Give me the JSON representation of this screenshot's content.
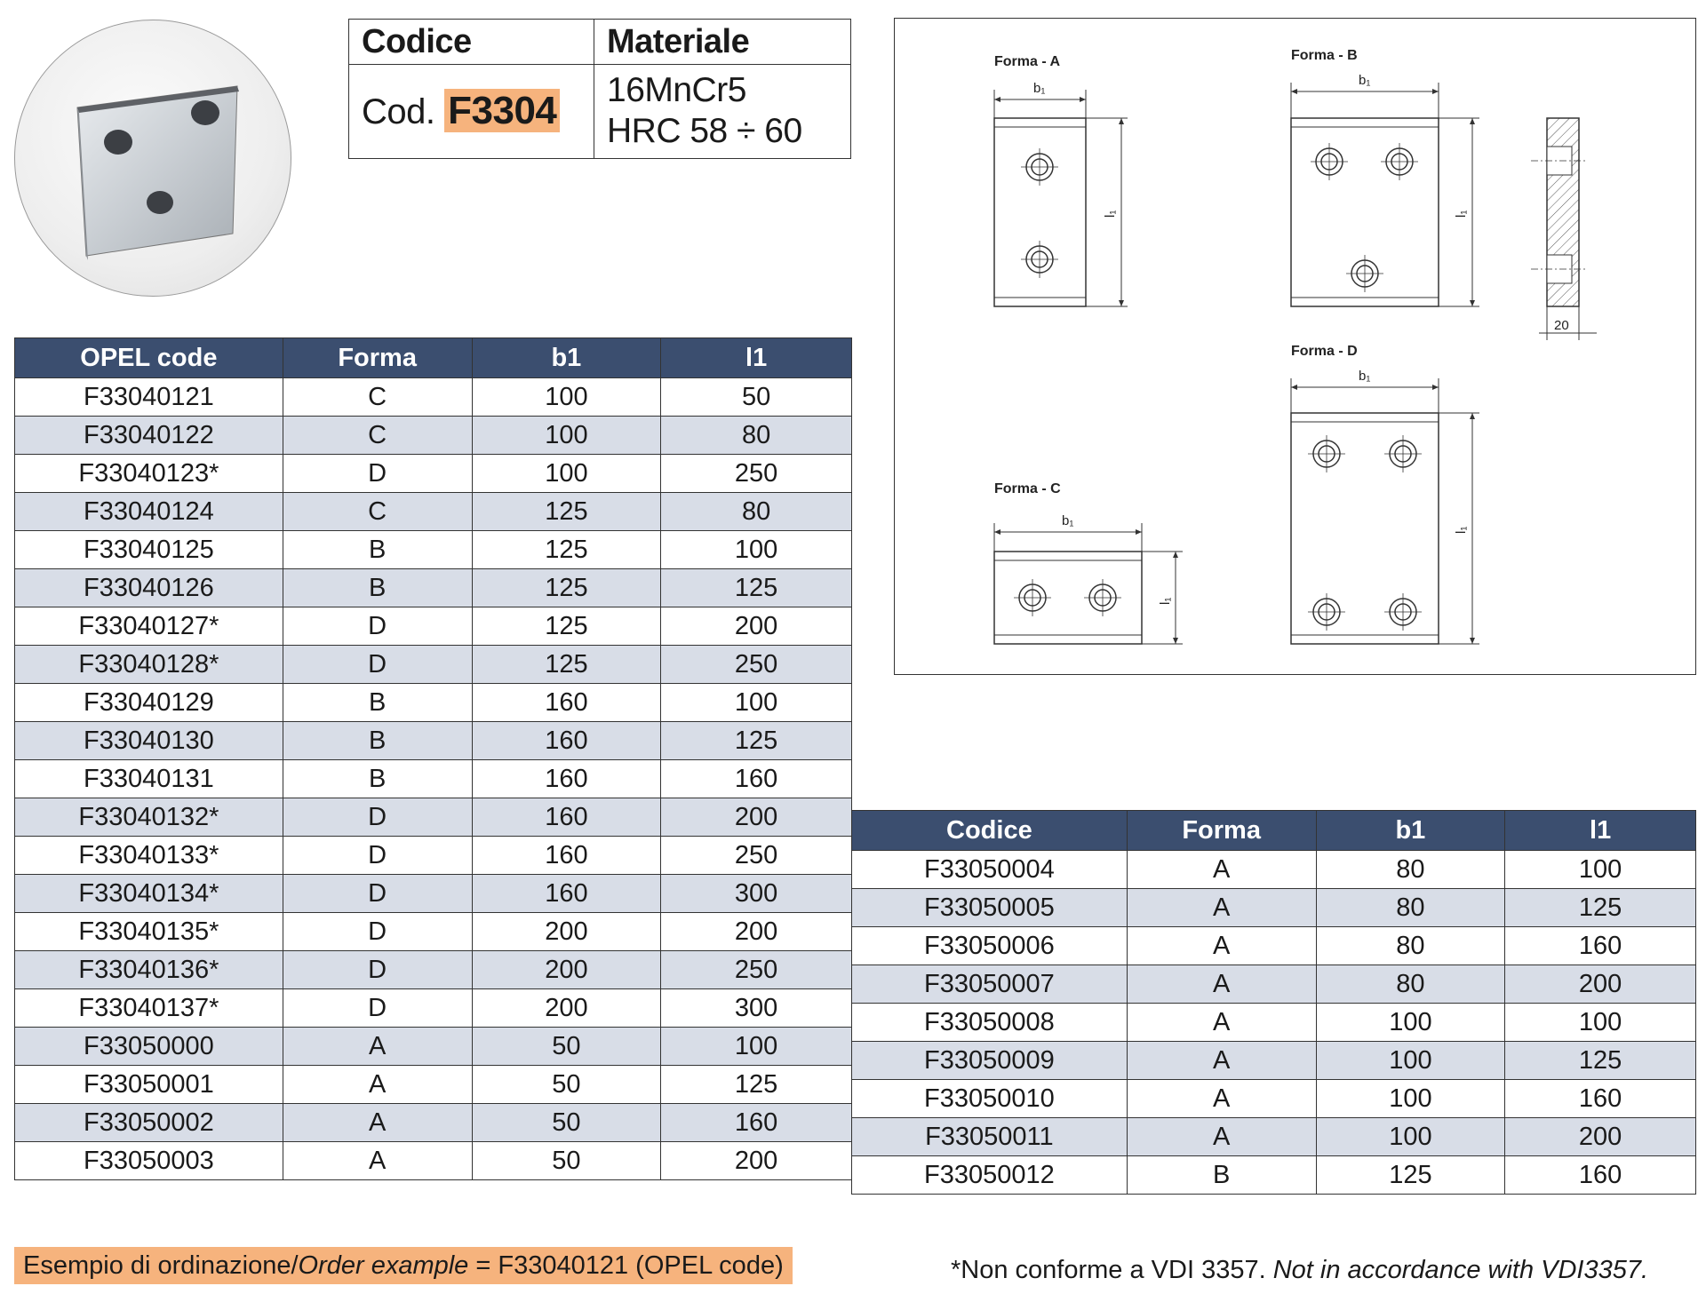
{
  "spec": {
    "codice_label": "Codice",
    "materiale_label": "Materiale",
    "cod_prefix": "Cod.",
    "cod_value": "F3304",
    "material_line1": "16MnCr5",
    "material_line2": "HRC 58 ÷ 60"
  },
  "drawing": {
    "forma_a": "Forma - A",
    "forma_b": "Forma - B",
    "forma_c": "Forma - C",
    "forma_d": "Forma - D",
    "b1": "b₁",
    "l1": "l₁",
    "thickness": "20"
  },
  "table_left": {
    "headers": [
      "OPEL code",
      "Forma",
      "b1",
      "l1"
    ],
    "rows": [
      [
        "F33040121",
        "C",
        "100",
        "50"
      ],
      [
        "F33040122",
        "C",
        "100",
        "80"
      ],
      [
        "F33040123*",
        "D",
        "100",
        "250"
      ],
      [
        "F33040124",
        "C",
        "125",
        "80"
      ],
      [
        "F33040125",
        "B",
        "125",
        "100"
      ],
      [
        "F33040126",
        "B",
        "125",
        "125"
      ],
      [
        "F33040127*",
        "D",
        "125",
        "200"
      ],
      [
        "F33040128*",
        "D",
        "125",
        "250"
      ],
      [
        "F33040129",
        "B",
        "160",
        "100"
      ],
      [
        "F33040130",
        "B",
        "160",
        "125"
      ],
      [
        "F33040131",
        "B",
        "160",
        "160"
      ],
      [
        "F33040132*",
        "D",
        "160",
        "200"
      ],
      [
        "F33040133*",
        "D",
        "160",
        "250"
      ],
      [
        "F33040134*",
        "D",
        "160",
        "300"
      ],
      [
        "F33040135*",
        "D",
        "200",
        "200"
      ],
      [
        "F33040136*",
        "D",
        "200",
        "250"
      ],
      [
        "F33040137*",
        "D",
        "200",
        "300"
      ],
      [
        "F33050000",
        "A",
        "50",
        "100"
      ],
      [
        "F33050001",
        "A",
        "50",
        "125"
      ],
      [
        "F33050002",
        "A",
        "50",
        "160"
      ],
      [
        "F33050003",
        "A",
        "50",
        "200"
      ]
    ]
  },
  "table_right": {
    "headers": [
      "Codice",
      "Forma",
      "b1",
      "l1"
    ],
    "rows": [
      [
        "F33050004",
        "A",
        "80",
        "100"
      ],
      [
        "F33050005",
        "A",
        "80",
        "125"
      ],
      [
        "F33050006",
        "A",
        "80",
        "160"
      ],
      [
        "F33050007",
        "A",
        "80",
        "200"
      ],
      [
        "F33050008",
        "A",
        "100",
        "100"
      ],
      [
        "F33050009",
        "A",
        "100",
        "125"
      ],
      [
        "F33050010",
        "A",
        "100",
        "160"
      ],
      [
        "F33050011",
        "A",
        "100",
        "200"
      ],
      [
        "F33050012",
        "B",
        "125",
        "160"
      ]
    ]
  },
  "footer": {
    "order_it": "Esempio di ordinazione/",
    "order_en": "Order example",
    "order_value": " = F33040121 (OPEL code)",
    "note_it": "*Non conforme a VDI 3357. ",
    "note_en": "Not in accordance with VDI3357."
  },
  "colors": {
    "header_bg": "#3b4e6f",
    "alt_row_bg": "#d8dde7",
    "highlight": "#f6b37d"
  }
}
